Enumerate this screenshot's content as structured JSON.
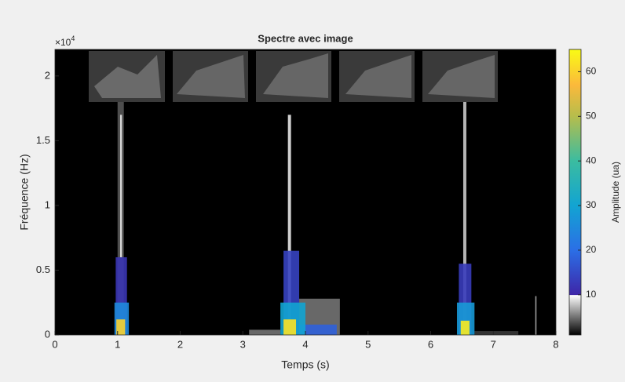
{
  "chart_data": {
    "type": "spectrogram",
    "title": "Spectre avec image",
    "x_label": "Temps (s)",
    "y_label": "Fréquence (Hz)",
    "y_exponent_base": "×10",
    "y_exponent_power": "4",
    "colorbar_label": "Amplitude (ua)",
    "xlim": [
      0,
      8
    ],
    "xticks": [
      0,
      1,
      2,
      3,
      4,
      5,
      6,
      7,
      8
    ],
    "ylim": [
      0,
      22050
    ],
    "yticks": [
      0,
      {
        "value": 5000,
        "label": "0.5"
      },
      {
        "value": 10000,
        "label": "1"
      },
      {
        "value": 15000,
        "label": "1.5"
      },
      {
        "value": 20000,
        "label": "2"
      }
    ],
    "clim": [
      1,
      65
    ],
    "cticks": [
      10,
      20,
      30,
      40,
      50,
      60
    ],
    "colormap": [
      {
        "value": 1,
        "color": "#000000"
      },
      {
        "value": 9.9,
        "color": "#ffffff"
      },
      {
        "value": 10,
        "color": "#3e26a8"
      },
      {
        "value": 20,
        "color": "#2b6fe6"
      },
      {
        "value": 30,
        "color": "#12a4d2"
      },
      {
        "value": 40,
        "color": "#3bbca0"
      },
      {
        "value": 50,
        "color": "#b6bd4c"
      },
      {
        "value": 57,
        "color": "#fbb93b"
      },
      {
        "value": 65,
        "color": "#f9fb15"
      }
    ],
    "cells": [
      {
        "t0": 1.0,
        "t1": 1.1,
        "f0": 0,
        "f1": 18000,
        "amplitude": 4
      },
      {
        "t0": 0.97,
        "t1": 1.15,
        "f0": 0,
        "f1": 6000,
        "amplitude": 12
      },
      {
        "t0": 0.95,
        "t1": 1.18,
        "f0": 0,
        "f1": 2500,
        "amplitude": 25
      },
      {
        "t0": 0.98,
        "t1": 1.12,
        "f0": 0,
        "f1": 1200,
        "amplitude": 60
      },
      {
        "t0": 1.04,
        "t1": 1.07,
        "f0": 6000,
        "f1": 17000,
        "amplitude": 9
      },
      {
        "t0": 3.1,
        "t1": 3.6,
        "f0": 0,
        "f1": 400,
        "amplitude": 5
      },
      {
        "t0": 3.72,
        "t1": 3.77,
        "f0": 0,
        "f1": 17000,
        "amplitude": 9
      },
      {
        "t0": 3.65,
        "t1": 3.9,
        "f0": 0,
        "f1": 6500,
        "amplitude": 14
      },
      {
        "t0": 3.9,
        "t1": 4.55,
        "f0": 0,
        "f1": 2800,
        "amplitude": 5
      },
      {
        "t0": 3.9,
        "t1": 4.5,
        "f0": 0,
        "f1": 800,
        "amplitude": 18
      },
      {
        "t0": 3.6,
        "t1": 4.0,
        "f0": 0,
        "f1": 2500,
        "amplitude": 30
      },
      {
        "t0": 3.65,
        "t1": 3.85,
        "f0": 0,
        "f1": 1200,
        "amplitude": 62
      },
      {
        "t0": 6.52,
        "t1": 6.57,
        "f0": 0,
        "f1": 18000,
        "amplitude": 8
      },
      {
        "t0": 6.45,
        "t1": 6.65,
        "f0": 0,
        "f1": 5500,
        "amplitude": 13
      },
      {
        "t0": 6.7,
        "t1": 7.4,
        "f0": 0,
        "f1": 300,
        "amplitude": 3
      },
      {
        "t0": 6.42,
        "t1": 6.7,
        "f0": 0,
        "f1": 2500,
        "amplitude": 28
      },
      {
        "t0": 6.48,
        "t1": 6.62,
        "f0": 0,
        "f1": 1100,
        "amplitude": 63
      },
      {
        "t0": 7.67,
        "t1": 7.69,
        "f0": 0,
        "f1": 3000,
        "amplitude": 7
      }
    ]
  }
}
